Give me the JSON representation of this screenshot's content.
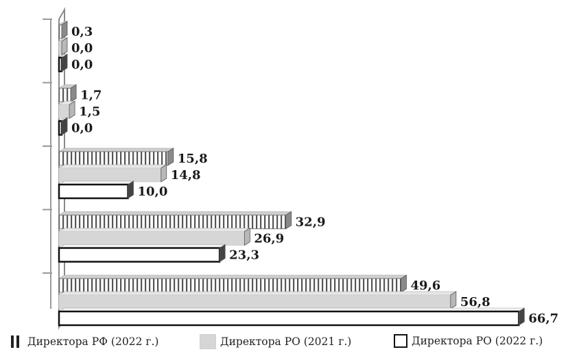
{
  "chart_data": {
    "type": "bar",
    "orientation": "horizontal",
    "categories": [
      "",
      "",
      "",
      "",
      ""
    ],
    "series": [
      {
        "name": "Директора РФ (2022 г.)",
        "values": [
          0.3,
          1.7,
          15.8,
          32.9,
          49.6
        ],
        "value_labels": [
          "0,3",
          "1,7",
          "15,8",
          "32,9",
          "49,6"
        ],
        "color": "#e8e8e8"
      },
      {
        "name": "Директора РО (2021 г.)",
        "values": [
          0.0,
          1.5,
          14.8,
          26.9,
          56.8
        ],
        "value_labels": [
          "0,0",
          "1,5",
          "14,8",
          "26,9",
          "56,8"
        ],
        "color": "#d6d6d6"
      },
      {
        "name": "Директора РО (2022 г.)",
        "values": [
          0.0,
          0.0,
          10.0,
          23.3,
          66.7
        ],
        "value_labels": [
          "0,0",
          "0,0",
          "10,0",
          "23,3",
          "66,7"
        ],
        "color": "#ffffff"
      }
    ],
    "xlim": [
      0,
      70
    ],
    "grid": false,
    "legend_position": "bottom"
  },
  "legend": {
    "items": [
      {
        "label": "Директора РФ (2022 г.)",
        "icon": "striped-bar-icon"
      },
      {
        "label": "Директора РО (2021 г.)",
        "icon": "gray-bar-icon"
      },
      {
        "label": "Директора РО (2022 г.)",
        "icon": "white-bar-icon"
      }
    ]
  }
}
